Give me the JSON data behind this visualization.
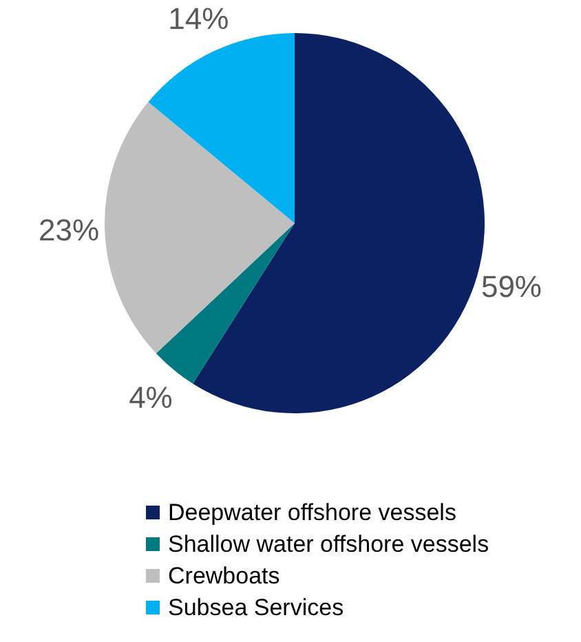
{
  "chart_data": {
    "type": "pie",
    "categories": [
      "Deepwater offshore vessels",
      "Shallow water  offshore vessels",
      "Crewboats",
      "Subsea Services"
    ],
    "values": [
      59,
      4,
      23,
      14
    ],
    "colors": [
      "#0b2161",
      "#007a80",
      "#bfbfbf",
      "#00b0f0"
    ],
    "value_labels": [
      "59%",
      "4%",
      "23%",
      "14%"
    ],
    "legend": "bottom"
  }
}
